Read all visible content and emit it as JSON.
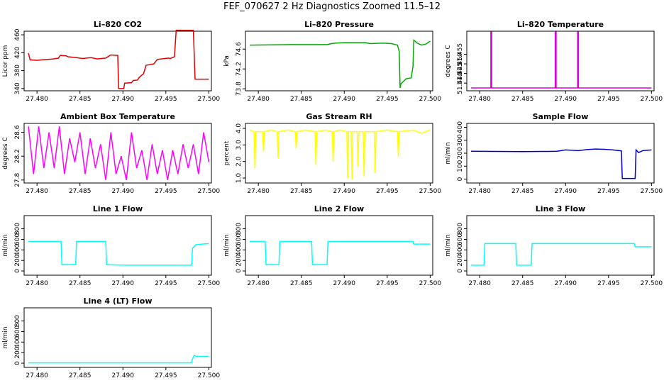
{
  "title": "FEF_070627  2 Hz Diagnostics Zoomed 11.5–12",
  "chart_data": [
    {
      "type": "line",
      "title": "Li–820 CO2",
      "ylabel": "Licor ppm",
      "color": "#dd0000",
      "xlim": [
        27.4785,
        27.5003
      ],
      "ylim": [
        335,
        468
      ],
      "xticks": [
        27.48,
        27.485,
        27.49,
        27.495,
        27.5
      ],
      "xtick_labels": [
        "27.480",
        "27.485",
        "27.490",
        "27.495",
        "27.500"
      ],
      "yticks": [
        340,
        380,
        420,
        460
      ],
      "ytick_labels": [
        "340",
        "380",
        "420",
        "460"
      ],
      "series": [
        {
          "x": [
            27.479,
            27.4792,
            27.48,
            27.4806,
            27.4812,
            27.4819,
            27.4825,
            27.4827,
            27.4834,
            27.4836,
            27.4846,
            27.4853,
            27.4863,
            27.487,
            27.488,
            27.4885,
            27.4886,
            27.4894,
            27.4895,
            27.4901,
            27.4902,
            27.491,
            27.4912,
            27.4917,
            27.4919,
            27.4924,
            27.4927,
            27.4936,
            27.494,
            27.4953,
            27.4955,
            27.496,
            27.4962,
            27.4982,
            27.4984,
            27.5
          ],
          "y": [
            419,
            404,
            403,
            404,
            405,
            406,
            408,
            414,
            413,
            411,
            409,
            407,
            409,
            406,
            408,
            414,
            415,
            414,
            340,
            340,
            352,
            353,
            358,
            359,
            365,
            373,
            392,
            395,
            405,
            408,
            407,
            411,
            470,
            470,
            361,
            361
          ]
        }
      ]
    },
    {
      "type": "line",
      "title": "Li–820 Pressure",
      "ylabel": "kPa",
      "color": "#00aa00",
      "xlim": [
        27.4785,
        27.5003
      ],
      "ylim": [
        73.76,
        74.96
      ],
      "xticks": [
        27.48,
        27.485,
        27.49,
        27.495,
        27.5
      ],
      "xtick_labels": [
        "27.480",
        "27.485",
        "27.490",
        "27.495",
        "27.500"
      ],
      "yticks": [
        73.8,
        74.2,
        74.6
      ],
      "ytick_labels": [
        "73.8",
        "74.2",
        "74.6"
      ],
      "series": [
        {
          "x": [
            27.479,
            27.484,
            27.488,
            27.4885,
            27.489,
            27.49,
            27.4925,
            27.493,
            27.4945,
            27.4955,
            27.4962,
            27.4964,
            27.4965,
            27.4966,
            27.4972,
            27.4978,
            27.498,
            27.4981,
            27.4985,
            27.499,
            27.4995,
            27.5
          ],
          "y": [
            74.68,
            74.69,
            74.69,
            74.71,
            74.72,
            74.73,
            74.73,
            74.71,
            74.72,
            74.71,
            74.68,
            74.55,
            73.82,
            73.9,
            74.0,
            74.02,
            74.25,
            74.78,
            74.72,
            74.68,
            74.7,
            74.76
          ]
        }
      ]
    },
    {
      "type": "line",
      "title": "Li–820 Temperature",
      "ylabel": "degrees C",
      "color": "#dd00dd",
      "xlim": [
        27.4785,
        27.5003
      ],
      "ylim": [
        51.436,
        51.467
      ],
      "xticks": [
        27.48,
        27.485,
        27.49,
        27.495,
        27.5
      ],
      "xtick_labels": [
        "27.480",
        "27.485",
        "27.490",
        "27.495",
        "27.500"
      ],
      "yticks": [
        51.44,
        51.445,
        51.45,
        51.455
      ],
      "ytick_labels": [
        "51.440",
        "51.445",
        "51.450",
        "51.455"
      ],
      "series": [
        {
          "x": [
            27.479,
            27.4813,
            27.4813,
            27.4814,
            27.4814,
            27.4888,
            27.4888,
            27.4889,
            27.4889,
            27.4914,
            27.4914,
            27.4915,
            27.4915,
            27.5
          ],
          "y": [
            51.4375,
            51.4375,
            51.4665,
            51.4665,
            51.4375,
            51.4375,
            51.4665,
            51.4665,
            51.4375,
            51.4375,
            51.4665,
            51.4665,
            51.4375,
            51.4375
          ]
        }
      ]
    },
    {
      "type": "line",
      "title": "Ambient Box Temperature",
      "ylabel": "degrees C",
      "color": "#ff00ff",
      "xlim": [
        27.4785,
        27.5003
      ],
      "ylim": [
        27.75,
        28.75
      ],
      "xticks": [
        27.48,
        27.485,
        27.49,
        27.495,
        27.5
      ],
      "xtick_labels": [
        "27.480",
        "27.485",
        "27.490",
        "27.495",
        "27.500"
      ],
      "yticks": [
        27.8,
        28.2,
        28.6
      ],
      "ytick_labels": [
        "27.8",
        "28.2",
        "28.6"
      ],
      "series": [
        {
          "x": [
            27.479,
            27.4796,
            27.4802,
            27.4808,
            27.4814,
            27.482,
            27.4826,
            27.4832,
            27.4838,
            27.4844,
            27.485,
            27.4856,
            27.4862,
            27.4868,
            27.4874,
            27.488,
            27.4886,
            27.4892,
            27.4898,
            27.4904,
            27.491,
            27.4916,
            27.4922,
            27.4928,
            27.4934,
            27.494,
            27.4946,
            27.4952,
            27.4958,
            27.4964,
            27.497,
            27.4976,
            27.4982,
            27.4988,
            27.4994,
            27.5
          ],
          "y": [
            28.7,
            27.9,
            28.7,
            28.0,
            28.6,
            28.0,
            28.7,
            27.9,
            28.5,
            28.1,
            28.6,
            27.9,
            28.5,
            28.0,
            28.4,
            27.8,
            28.6,
            27.9,
            28.2,
            27.8,
            28.6,
            28.0,
            28.3,
            27.8,
            28.4,
            27.9,
            28.3,
            27.8,
            28.3,
            27.9,
            28.4,
            28.0,
            28.4,
            27.9,
            28.6,
            28.1
          ]
        }
      ]
    },
    {
      "type": "line",
      "title": "Gas Stream RH",
      "ylabel": "percent",
      "color": "#ffff00",
      "xlim": [
        27.4785,
        27.5003
      ],
      "ylim": [
        0.7,
        4.3
      ],
      "xticks": [
        27.48,
        27.485,
        27.49,
        27.495,
        27.5
      ],
      "xtick_labels": [
        "27.480",
        "27.485",
        "27.490",
        "27.495",
        "27.500"
      ],
      "yticks": [
        1.0,
        2.0,
        3.0,
        4.0
      ],
      "ytick_labels": [
        "1.0",
        "2.0",
        "3.0",
        "4.0"
      ],
      "series": [
        {
          "x": [
            27.479,
            27.4795,
            27.4796,
            27.4797,
            27.4805,
            27.4806,
            27.4807,
            27.4815,
            27.4822,
            27.4823,
            27.4824,
            27.4835,
            27.4843,
            27.4844,
            27.4845,
            27.4855,
            27.4866,
            27.4867,
            27.4868,
            27.4878,
            27.4886,
            27.4887,
            27.4888,
            27.4895,
            27.4903,
            27.4904,
            27.4905,
            27.4908,
            27.4909,
            27.491,
            27.4915,
            27.4916,
            27.4917,
            27.4922,
            27.4923,
            27.4924,
            27.4935,
            27.4936,
            27.4937,
            27.495,
            27.4962,
            27.4963,
            27.4964,
            27.498,
            27.499,
            27.5
          ],
          "y": [
            3.9,
            3.8,
            1.6,
            3.8,
            3.8,
            2.6,
            3.8,
            3.9,
            3.8,
            2.2,
            3.8,
            3.9,
            3.8,
            2.8,
            3.8,
            3.9,
            3.8,
            1.8,
            3.8,
            3.9,
            3.8,
            2.0,
            3.8,
            3.9,
            3.8,
            1.0,
            3.8,
            3.8,
            0.9,
            3.8,
            3.8,
            1.7,
            3.8,
            3.8,
            1.1,
            3.8,
            3.8,
            1.3,
            3.8,
            3.9,
            3.8,
            2.3,
            3.8,
            3.9,
            3.7,
            3.9
          ]
        }
      ]
    },
    {
      "type": "line",
      "title": "Sample Flow",
      "ylabel": "ml/min",
      "color": "#0000cc",
      "xlim": [
        27.4785,
        27.5003
      ],
      "ylim": [
        -30,
        430
      ],
      "xticks": [
        27.48,
        27.485,
        27.49,
        27.495,
        27.5
      ],
      "xtick_labels": [
        "27.480",
        "27.485",
        "27.490",
        "27.495",
        "27.500"
      ],
      "yticks": [
        0,
        100,
        200,
        300,
        400
      ],
      "ytick_labels": [
        "0",
        "100",
        "200",
        "300",
        "400"
      ],
      "series": [
        {
          "x": [
            27.479,
            27.485,
            27.488,
            27.489,
            27.49,
            27.4915,
            27.4925,
            27.4935,
            27.4945,
            27.4955,
            27.4965,
            27.4966,
            27.4981,
            27.4982,
            27.4985,
            27.499,
            27.5
          ],
          "y": [
            215,
            212,
            214,
            215,
            225,
            220,
            228,
            232,
            230,
            225,
            218,
            5,
            5,
            225,
            205,
            220,
            225
          ]
        }
      ]
    },
    {
      "type": "line",
      "title": "Line 1 Flow",
      "ylabel": "ml/min",
      "color": "#00ffff",
      "xlim": [
        27.4785,
        27.5003
      ],
      "ylim": [
        -80,
        1050
      ],
      "xticks": [
        27.48,
        27.485,
        27.49,
        27.495,
        27.5
      ],
      "xtick_labels": [
        "27.480",
        "27.485",
        "27.490",
        "27.495",
        "27.500"
      ],
      "yticks": [
        0,
        200,
        400,
        600,
        800
      ],
      "ytick_labels": [
        "0",
        "200",
        "400",
        "600",
        "800"
      ],
      "series": [
        {
          "x": [
            27.479,
            27.4828,
            27.4829,
            27.4845,
            27.4846,
            27.488,
            27.4881,
            27.49,
            27.498,
            27.4981,
            27.4985,
            27.5
          ],
          "y": [
            560,
            560,
            120,
            120,
            560,
            560,
            120,
            110,
            110,
            430,
            500,
            520
          ]
        }
      ]
    },
    {
      "type": "line",
      "title": "Line 2 Flow",
      "ylabel": "ml/min",
      "color": "#00ffff",
      "xlim": [
        27.4785,
        27.5003
      ],
      "ylim": [
        -80,
        1050
      ],
      "xticks": [
        27.48,
        27.485,
        27.49,
        27.495,
        27.5
      ],
      "xtick_labels": [
        "27.480",
        "27.485",
        "27.490",
        "27.495",
        "27.500"
      ],
      "yticks": [
        0,
        200,
        400,
        600,
        800
      ],
      "ytick_labels": [
        "0",
        "200",
        "400",
        "600",
        "800"
      ],
      "series": [
        {
          "x": [
            27.479,
            27.4808,
            27.4809,
            27.4824,
            27.4825,
            27.4862,
            27.4863,
            27.488,
            27.4881,
            27.498,
            27.4981,
            27.5
          ],
          "y": [
            560,
            560,
            120,
            120,
            560,
            560,
            120,
            120,
            560,
            560,
            510,
            510
          ]
        }
      ]
    },
    {
      "type": "line",
      "title": "Line 3 Flow",
      "ylabel": "ml/min",
      "color": "#00ffff",
      "xlim": [
        27.4785,
        27.5003
      ],
      "ylim": [
        -80,
        1050
      ],
      "xticks": [
        27.48,
        27.485,
        27.49,
        27.495,
        27.5
      ],
      "xtick_labels": [
        "27.480",
        "27.485",
        "27.490",
        "27.495",
        "27.500"
      ],
      "yticks": [
        0,
        200,
        400,
        600,
        800
      ],
      "ytick_labels": [
        "0",
        "200",
        "400",
        "600",
        "800"
      ],
      "series": [
        {
          "x": [
            27.479,
            27.4805,
            27.4806,
            27.4842,
            27.4843,
            27.486,
            27.4861,
            27.498,
            27.4981,
            27.5
          ],
          "y": [
            110,
            110,
            520,
            520,
            110,
            110,
            520,
            520,
            460,
            460
          ]
        }
      ]
    },
    {
      "type": "line",
      "title": "Line 4 (LT) Flow",
      "ylabel": "ml/min",
      "color": "#00ffff",
      "xlim": [
        27.4785,
        27.5003
      ],
      "ylim": [
        -80,
        1050
      ],
      "xticks": [
        27.48,
        27.485,
        27.49,
        27.495,
        27.5
      ],
      "xtick_labels": [
        "27.480",
        "27.485",
        "27.490",
        "27.495",
        "27.500"
      ],
      "yticks": [
        0,
        200,
        400,
        600,
        800
      ],
      "ytick_labels": [
        "0",
        "200",
        "400",
        "600",
        "800"
      ],
      "series": [
        {
          "x": [
            27.479,
            27.498,
            27.4981,
            27.4983,
            27.4985,
            27.5
          ],
          "y": [
            5,
            5,
            80,
            150,
            130,
            130
          ]
        }
      ]
    }
  ]
}
